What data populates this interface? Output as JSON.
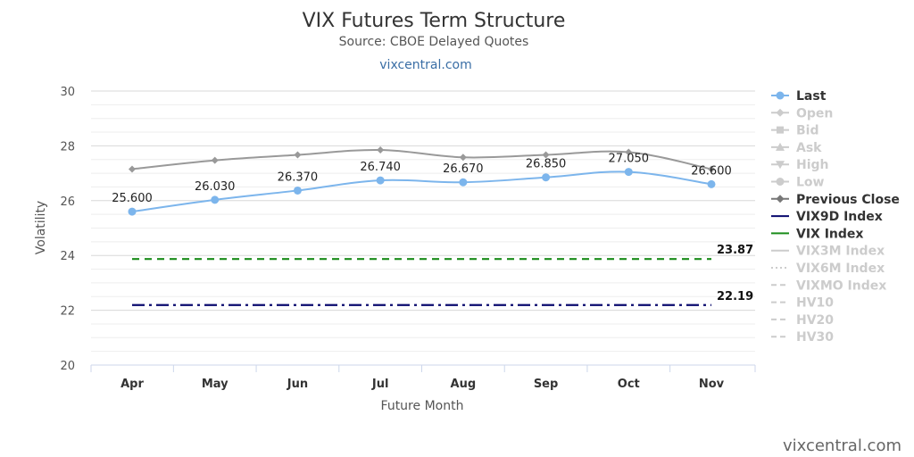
{
  "chart_data": {
    "type": "line",
    "title": "VIX Futures Term Structure",
    "subtitle": "Source: CBOE Delayed Quotes",
    "site": "vixcentral.com",
    "credit": "vixcentral.com",
    "xlabel": "Future Month",
    "ylabel": "Volatility",
    "categories": [
      "Apr",
      "May",
      "Jun",
      "Jul",
      "Aug",
      "Sep",
      "Oct",
      "Nov"
    ],
    "ylim": [
      20,
      30
    ],
    "yticks": [
      "20",
      "22",
      "24",
      "26",
      "28",
      "30"
    ],
    "grid": true,
    "legend_position": "right",
    "series": [
      {
        "name": "Last",
        "values": [
          25.6,
          26.03,
          26.37,
          26.74,
          26.67,
          26.85,
          27.05,
          26.6
        ],
        "labels": [
          "25.600",
          "26.030",
          "26.370",
          "26.740",
          "26.670",
          "26.850",
          "27.050",
          "26.600"
        ],
        "color": "#7cb5ec",
        "marker": "circle"
      },
      {
        "name": "Previous Close",
        "values": [
          27.15,
          27.47,
          27.67,
          27.85,
          27.58,
          27.67,
          27.77,
          27.15
        ],
        "color": "#999999",
        "marker": "diamond"
      }
    ],
    "reference_lines": [
      {
        "name": "VIX Index",
        "value": 23.87,
        "label": "23.87",
        "color": "#1a8c1a",
        "dash": "dash"
      },
      {
        "name": "VIX9D Index",
        "value": 22.19,
        "label": "22.19",
        "color": "#0a0a6e",
        "dash": "dashdot"
      }
    ],
    "legend": [
      {
        "name": "Last",
        "active": true,
        "color": "#7cb5ec",
        "symbol": "circle-line"
      },
      {
        "name": "Open",
        "active": false,
        "color": "#cccccc",
        "symbol": "diamond-line"
      },
      {
        "name": "Bid",
        "active": false,
        "color": "#cccccc",
        "symbol": "square-line"
      },
      {
        "name": "Ask",
        "active": false,
        "color": "#cccccc",
        "symbol": "triangle-line"
      },
      {
        "name": "High",
        "active": false,
        "color": "#cccccc",
        "symbol": "triangle-down-line"
      },
      {
        "name": "Low",
        "active": false,
        "color": "#cccccc",
        "symbol": "circle-line"
      },
      {
        "name": "Previous Close",
        "active": true,
        "color": "#777777",
        "symbol": "diamond-line"
      },
      {
        "name": "VIX9D Index",
        "active": true,
        "color": "#0a0a6e",
        "symbol": "line"
      },
      {
        "name": "VIX Index",
        "active": true,
        "color": "#1a8c1a",
        "symbol": "line"
      },
      {
        "name": "VIX3M Index",
        "active": false,
        "color": "#cccccc",
        "symbol": "line"
      },
      {
        "name": "VIX6M Index",
        "active": false,
        "color": "#cccccc",
        "symbol": "dot-line"
      },
      {
        "name": "VIXMO Index",
        "active": false,
        "color": "#cccccc",
        "symbol": "dash-line"
      },
      {
        "name": "HV10",
        "active": false,
        "color": "#cccccc",
        "symbol": "dash-line"
      },
      {
        "name": "HV20",
        "active": false,
        "color": "#cccccc",
        "symbol": "dash-line"
      },
      {
        "name": "HV30",
        "active": false,
        "color": "#cccccc",
        "symbol": "dash-line"
      }
    ]
  }
}
